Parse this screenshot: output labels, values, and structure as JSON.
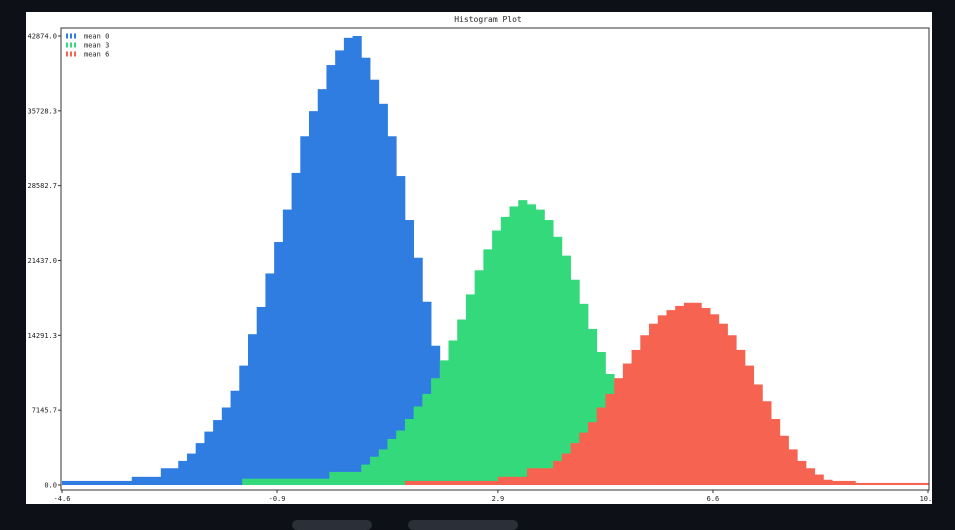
{
  "chart_data": {
    "type": "bar",
    "title": "Histogram Plot",
    "xlabel": "",
    "ylabel": "",
    "xlim": [
      -4.6,
      10.3
    ],
    "ylim": [
      0,
      45000
    ],
    "x_ticks": [
      "-4.6",
      "-0.9",
      "2.9",
      "6.6",
      "10.3"
    ],
    "x_tick_values": [
      -4.6,
      -0.9,
      2.9,
      6.6,
      10.3
    ],
    "y_ticks": [
      "0.0",
      "7145.7",
      "14291.3",
      "21437.0",
      "28582.7",
      "35728.3",
      "42874.0"
    ],
    "y_tick_values": [
      0,
      7145.7,
      14291.3,
      21437.0,
      28582.7,
      35728.3,
      42874.0
    ],
    "legend": {
      "position": "top-left",
      "entries": [
        "mean 0",
        "mean 3",
        "mean 6"
      ]
    },
    "grid": false,
    "series": [
      {
        "name": "mean 0",
        "color": "#2f7de1",
        "bins": [
          [
            -4.6,
            -3.4,
            390
          ],
          [
            -3.4,
            -2.9,
            780
          ],
          [
            -2.9,
            -2.6,
            1600
          ],
          [
            -2.6,
            -2.45,
            2300
          ],
          [
            -2.45,
            -2.3,
            3000
          ],
          [
            -2.3,
            -2.15,
            4000
          ],
          [
            -2.15,
            -2.0,
            5100
          ],
          [
            -2.0,
            -1.85,
            6200
          ],
          [
            -1.85,
            -1.7,
            7400
          ],
          [
            -1.7,
            -1.55,
            9000
          ],
          [
            -1.55,
            -1.4,
            11400
          ],
          [
            -1.4,
            -1.25,
            14400
          ],
          [
            -1.25,
            -1.1,
            17000
          ],
          [
            -1.1,
            -0.95,
            20200
          ],
          [
            -0.95,
            -0.8,
            23200
          ],
          [
            -0.8,
            -0.65,
            26300
          ],
          [
            -0.65,
            -0.5,
            29800
          ],
          [
            -0.5,
            -0.35,
            33300
          ],
          [
            -0.35,
            -0.2,
            35700
          ],
          [
            -0.2,
            -0.05,
            37800
          ],
          [
            -0.05,
            0.1,
            40100
          ],
          [
            0.1,
            0.25,
            41500
          ],
          [
            0.25,
            0.4,
            42700
          ],
          [
            0.4,
            0.55,
            42874
          ],
          [
            0.55,
            0.7,
            40800
          ],
          [
            0.7,
            0.85,
            38700
          ],
          [
            0.85,
            1.0,
            36400
          ],
          [
            1.0,
            1.15,
            33300
          ],
          [
            1.15,
            1.3,
            29500
          ],
          [
            1.3,
            1.45,
            25300
          ],
          [
            1.45,
            1.6,
            21700
          ],
          [
            1.6,
            1.75,
            17500
          ],
          [
            1.75,
            1.9,
            13300
          ],
          [
            1.9,
            2.05,
            10100
          ]
        ]
      },
      {
        "name": "mean 3",
        "color": "#33d97a",
        "bins": [
          [
            -1.5,
            0.0,
            600
          ],
          [
            0.0,
            0.55,
            1250
          ],
          [
            0.55,
            0.7,
            1950
          ],
          [
            0.7,
            0.85,
            2700
          ],
          [
            0.85,
            1.0,
            3400
          ],
          [
            1.0,
            1.15,
            4400
          ],
          [
            1.15,
            1.3,
            5200
          ],
          [
            1.3,
            1.45,
            6300
          ],
          [
            1.45,
            1.6,
            7500
          ],
          [
            1.6,
            1.75,
            8700
          ],
          [
            1.75,
            1.9,
            10200
          ],
          [
            1.9,
            2.05,
            11900
          ],
          [
            2.05,
            2.2,
            13800
          ],
          [
            2.2,
            2.35,
            15800
          ],
          [
            2.35,
            2.5,
            18200
          ],
          [
            2.5,
            2.65,
            20500
          ],
          [
            2.65,
            2.8,
            22500
          ],
          [
            2.8,
            2.95,
            24300
          ],
          [
            2.95,
            3.1,
            25600
          ],
          [
            3.1,
            3.25,
            26600
          ],
          [
            3.25,
            3.4,
            27200
          ],
          [
            3.4,
            3.55,
            26800
          ],
          [
            3.55,
            3.7,
            26300
          ],
          [
            3.7,
            3.85,
            25300
          ],
          [
            3.85,
            4.0,
            23700
          ],
          [
            4.0,
            4.15,
            21900
          ],
          [
            4.15,
            4.3,
            19600
          ],
          [
            4.3,
            4.45,
            17300
          ],
          [
            4.45,
            4.6,
            14900
          ],
          [
            4.6,
            4.75,
            12700
          ],
          [
            4.75,
            4.9,
            10600
          ],
          [
            4.9,
            5.05,
            8700
          ],
          [
            5.05,
            5.2,
            7100
          ]
        ]
      },
      {
        "name": "mean 6",
        "color": "#f66451",
        "bins": [
          [
            1.3,
            2.9,
            390
          ],
          [
            2.9,
            3.4,
            780
          ],
          [
            3.4,
            3.85,
            1600
          ],
          [
            3.85,
            4.0,
            2300
          ],
          [
            4.0,
            4.15,
            3000
          ],
          [
            4.15,
            4.3,
            4000
          ],
          [
            4.3,
            4.45,
            5000
          ],
          [
            4.45,
            4.6,
            6000
          ],
          [
            4.6,
            4.75,
            7400
          ],
          [
            4.75,
            4.9,
            8700
          ],
          [
            4.9,
            5.05,
            10200
          ],
          [
            5.05,
            5.2,
            11600
          ],
          [
            5.2,
            5.35,
            12900
          ],
          [
            5.35,
            5.5,
            14300
          ],
          [
            5.5,
            5.65,
            15400
          ],
          [
            5.65,
            5.8,
            16200
          ],
          [
            5.8,
            5.95,
            16700
          ],
          [
            5.95,
            6.1,
            17100
          ],
          [
            6.1,
            6.25,
            17400
          ],
          [
            6.25,
            6.4,
            17400
          ],
          [
            6.4,
            6.55,
            16900
          ],
          [
            6.55,
            6.7,
            16300
          ],
          [
            6.7,
            6.85,
            15400
          ],
          [
            6.85,
            7.0,
            14300
          ],
          [
            7.0,
            7.15,
            12900
          ],
          [
            7.15,
            7.3,
            11400
          ],
          [
            7.3,
            7.45,
            9600
          ],
          [
            7.45,
            7.6,
            8000
          ],
          [
            7.6,
            7.75,
            6300
          ],
          [
            7.75,
            7.9,
            4700
          ],
          [
            7.9,
            8.05,
            3400
          ],
          [
            8.05,
            8.2,
            2300
          ],
          [
            8.2,
            8.35,
            1600
          ],
          [
            8.35,
            8.5,
            1000
          ],
          [
            8.5,
            8.65,
            500
          ],
          [
            8.65,
            9.05,
            390
          ],
          [
            9.05,
            10.3,
            200
          ]
        ]
      }
    ]
  }
}
